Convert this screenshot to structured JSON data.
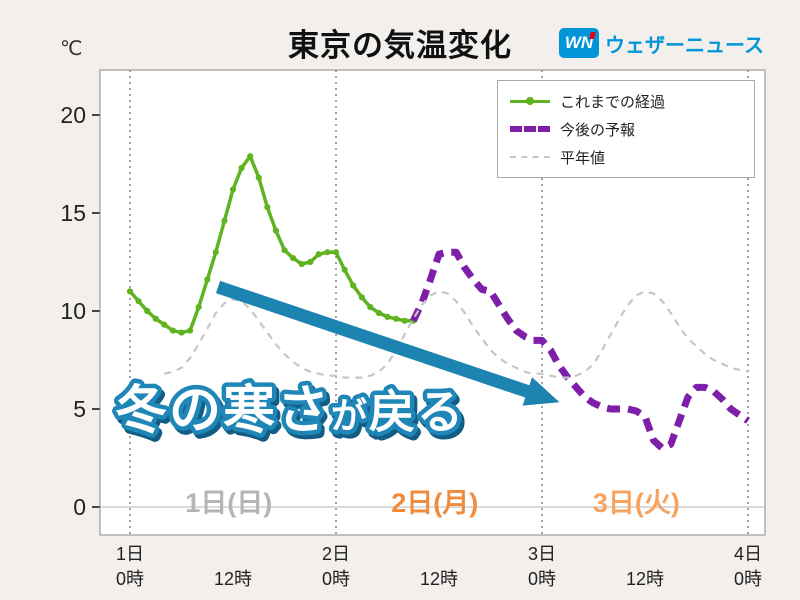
{
  "header": {
    "title": "東京の気温変化",
    "y_unit": "℃",
    "logo": {
      "mark": "WN",
      "text": "ウェザーニュース",
      "color": "#0095d9",
      "accent_color": "#e60012"
    }
  },
  "legend": {
    "items": [
      {
        "key": "past",
        "label": "これまでの経過"
      },
      {
        "key": "forecast",
        "label": "今後の予報"
      },
      {
        "key": "normal",
        "label": "平年値"
      }
    ]
  },
  "annotation": {
    "text": "冬の寒さが戻る",
    "part1": "冬の寒さ",
    "part2": "が",
    "part3": "戻る",
    "outline_color": "#1f86b8"
  },
  "arrow": {
    "color": "#1d83b0",
    "direction": "down-right"
  },
  "chart_data": {
    "type": "line",
    "title": "東京の気温変化",
    "ylabel": "℃",
    "ylim": [
      -1.5,
      22.5
    ],
    "x_unit": "hour",
    "x_range_hours": [
      0,
      72
    ],
    "grid": "vertical dotted lines at each 0時; light horizontal line at 0℃",
    "legend_position": "upper right",
    "y_ticks": [
      0,
      5,
      10,
      15,
      20
    ],
    "x_ticks": [
      {
        "hour": 0,
        "line1": "1日",
        "line2": "0時"
      },
      {
        "hour": 12,
        "line1": "",
        "line2": "12時"
      },
      {
        "hour": 24,
        "line1": "2日",
        "line2": "0時"
      },
      {
        "hour": 36,
        "line1": "",
        "line2": "12時"
      },
      {
        "hour": 48,
        "line1": "3日",
        "line2": "0時"
      },
      {
        "hour": 60,
        "line1": "",
        "line2": "12時"
      },
      {
        "hour": 72,
        "line1": "4日",
        "line2": "0時"
      }
    ],
    "day_labels": [
      {
        "text": "1日(日)",
        "hour": 11.5,
        "color": "#b5b5b5"
      },
      {
        "text": "2日(月)",
        "hour": 35.5,
        "color": "#f08c3c"
      },
      {
        "text": "3日(火)",
        "hour": 59,
        "color": "#f6a45f"
      }
    ],
    "gridlines_vertical_hours": [
      0,
      24,
      48,
      72
    ],
    "series": [
      {
        "key": "past",
        "name": "これまでの経過",
        "color": "#5fb321",
        "width": 3.5,
        "dash": null,
        "dots": true,
        "x_start_hour": 0,
        "values": [
          11.0,
          10.5,
          10.0,
          9.6,
          9.3,
          9.0,
          8.9,
          9.0,
          10.2,
          11.6,
          13.0,
          14.6,
          16.2,
          17.3,
          17.9,
          16.8,
          15.3,
          14.1,
          13.1,
          12.7,
          12.4,
          12.5,
          12.9,
          13.0,
          13.0,
          12.1,
          11.3,
          10.7,
          10.2,
          9.9,
          9.7,
          9.6,
          9.5,
          9.5
        ]
      },
      {
        "key": "forecast",
        "name": "今後の予報",
        "color": "#7d1fa8",
        "width": 7,
        "dash": "13 8",
        "dots": false,
        "x_start_hour": 33,
        "values": [
          9.5,
          10.4,
          11.6,
          12.9,
          13.0,
          13.0,
          12.2,
          11.6,
          11.1,
          11.0,
          10.3,
          9.6,
          9.0,
          8.7,
          8.5,
          8.5,
          8.0,
          7.2,
          6.6,
          6.1,
          5.6,
          5.3,
          5.1,
          5.0,
          5.0,
          5.0,
          4.9,
          4.6,
          3.4,
          3.0,
          3.2,
          4.4,
          5.6,
          6.1,
          6.1,
          5.9,
          5.5,
          5.0,
          4.7,
          4.4
        ]
      },
      {
        "key": "normal",
        "name": "平年値",
        "color": "#c6c6c6",
        "width": 2.2,
        "dash": "7 6",
        "dots": false,
        "x_start_hour": 4,
        "values": [
          6.8,
          6.9,
          7.1,
          7.6,
          8.3,
          9.1,
          9.9,
          10.4,
          10.6,
          10.5,
          10.1,
          9.5,
          8.9,
          8.3,
          7.8,
          7.4,
          7.1,
          6.9,
          6.8,
          6.7,
          6.7,
          6.6,
          6.6,
          6.6,
          6.7,
          6.9,
          7.3,
          8.0,
          8.8,
          9.6,
          10.3,
          10.8,
          11.0,
          10.9,
          10.5,
          9.9,
          9.2,
          8.6,
          8.0,
          7.6,
          7.3,
          7.1,
          6.9,
          6.8,
          6.8,
          6.7,
          6.6,
          6.6,
          6.7,
          6.9,
          7.3,
          8.0,
          8.8,
          9.6,
          10.3,
          10.8,
          11.0,
          10.9,
          10.5,
          9.9,
          9.2,
          8.6,
          8.2,
          7.8,
          7.5,
          7.3,
          7.1,
          7.0,
          6.9
        ]
      }
    ]
  }
}
